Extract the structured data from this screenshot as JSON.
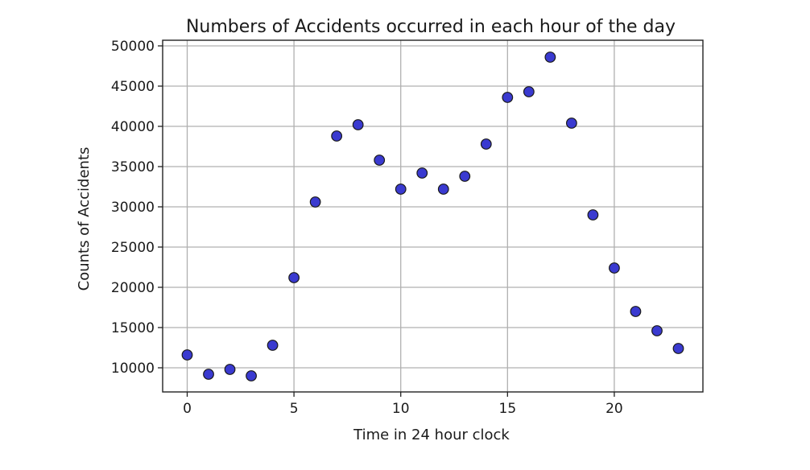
{
  "chart_data": {
    "type": "scatter",
    "title": "Numbers of Accidents occurred in each hour of the day",
    "xlabel": "Time in 24 hour clock",
    "ylabel": "Counts of Accidents",
    "xlim": [
      -1.15,
      24.15
    ],
    "ylim": [
      7000,
      50700
    ],
    "xticks": [
      0,
      5,
      10,
      15,
      20
    ],
    "yticks": [
      10000,
      15000,
      20000,
      25000,
      30000,
      35000,
      40000,
      45000,
      50000
    ],
    "grid": true,
    "marker_color": "#3a3ad0",
    "marker_edge_color": "#1a1a1a",
    "series": [
      {
        "x": [
          0,
          1,
          2,
          3,
          4,
          5,
          6,
          7,
          8,
          9,
          10,
          11,
          12,
          13,
          14,
          15,
          16,
          17,
          18,
          19,
          20,
          21,
          22,
          23
        ],
        "values": [
          11600,
          9200,
          9800,
          9000,
          12800,
          21200,
          30600,
          38800,
          40200,
          35800,
          32200,
          34200,
          32200,
          33800,
          37800,
          43600,
          44300,
          48600,
          40400,
          29000,
          22400,
          17000,
          14600,
          12400
        ]
      }
    ]
  }
}
